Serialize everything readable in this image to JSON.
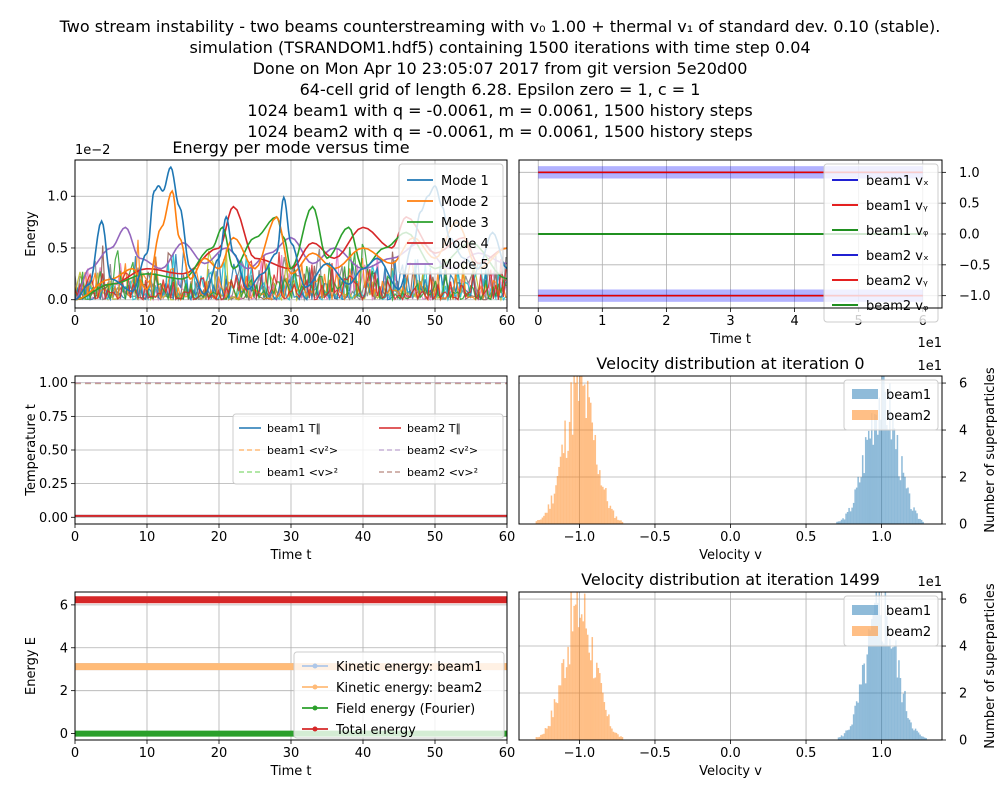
{
  "header": {
    "lines": [
      "Two stream instability - two beams counterstreaming with v₀ 1.00 + thermal v₁ of standard dev. 0.10 (stable).",
      "simulation (TSRANDOM1.hdf5) containing 1500 iterations with time step 0.04",
      "Done on Mon Apr 10 23:05:07 2017 from git version 5e20d00",
      "64-cell grid of length 6.28. Epsilon zero = 1, c = 1",
      "1024 beam1 with q = -0.0061, m = 0.0061, 1500 history steps",
      "1024 beam2 with q = -0.0061, m = 0.0061, 1500 history steps"
    ]
  },
  "chart_data": [
    {
      "id": "modes",
      "type": "line",
      "title": "Energy per mode versus time",
      "xlabel": "Time [dt: 4.00e-02]",
      "ylabel": "Energy",
      "offset_text": "1e−2",
      "xlim": [
        0,
        60
      ],
      "ylim": [
        -0.08,
        1.35
      ],
      "xticks": [
        "0",
        "10",
        "20",
        "30",
        "40",
        "50",
        "60"
      ],
      "yticks": [
        "0.0",
        "0.5",
        "1.0"
      ],
      "ytick_values": [
        0,
        0.5,
        1.0
      ],
      "grid": true,
      "legend_position": "top-right",
      "series": [
        {
          "name": "Mode 1",
          "color": "#1f77b4",
          "x": [
            0,
            2,
            3.7,
            5,
            8,
            10,
            11,
            11.6,
            12.2,
            13.3,
            14.5,
            16,
            18,
            20,
            21,
            22,
            24,
            26,
            28,
            29,
            30,
            32,
            35,
            38,
            40,
            42,
            45,
            47,
            48,
            49,
            50,
            51,
            52,
            54,
            56,
            58,
            60
          ],
          "y": [
            0,
            0.15,
            0.76,
            0.2,
            0.08,
            0.45,
            1.05,
            1.1,
            1.05,
            1.28,
            0.9,
            0.3,
            0.05,
            0.4,
            0.8,
            0.45,
            0.1,
            0.25,
            0.45,
            0.99,
            0.55,
            0.12,
            0.35,
            0.15,
            0.3,
            0.4,
            0.1,
            0.55,
            0.85,
            1.0,
            1.1,
            0.9,
            0.6,
            0.4,
            0.3,
            0.65,
            0.3
          ]
        },
        {
          "name": "Mode 2",
          "color": "#ff7f0e",
          "x": [
            0,
            5,
            8,
            10,
            12,
            13.5,
            14.5,
            16,
            18,
            20,
            22,
            25,
            28,
            30,
            33,
            36,
            40,
            44,
            47,
            50,
            53,
            56,
            60
          ],
          "y": [
            0,
            0.2,
            0.3,
            0.1,
            0.7,
            1.05,
            0.6,
            0.2,
            0.4,
            0.3,
            0.6,
            0.3,
            0.8,
            0.25,
            0.45,
            0.3,
            0.5,
            0.35,
            0.6,
            0.4,
            0.75,
            0.3,
            0.5
          ]
        },
        {
          "name": "Mode 3",
          "color": "#2ca02c",
          "x": [
            0,
            5,
            10,
            15,
            19,
            20.5,
            22,
            25,
            28,
            29,
            30,
            33,
            35,
            38,
            40,
            43,
            46,
            50,
            55,
            60
          ],
          "y": [
            0,
            0.15,
            0.25,
            0.2,
            0.5,
            0.7,
            0.3,
            0.6,
            0.8,
            0.6,
            0.3,
            0.9,
            0.4,
            0.7,
            0.3,
            0.5,
            0.65,
            0.3,
            0.55,
            0.2
          ]
        },
        {
          "name": "Mode 4",
          "color": "#d62728",
          "x": [
            0,
            5,
            10,
            15,
            20,
            22,
            25,
            30,
            33,
            36,
            40,
            44,
            46,
            50,
            54,
            56,
            60
          ],
          "y": [
            0,
            0.15,
            0.3,
            0.25,
            0.5,
            0.9,
            0.4,
            0.3,
            0.55,
            0.4,
            0.7,
            0.5,
            0.8,
            0.45,
            0.6,
            0.35,
            0.5
          ]
        },
        {
          "name": "Mode 5",
          "color": "#9467bd",
          "x": [
            0,
            2,
            5,
            7,
            9,
            12,
            15,
            18,
            21,
            24,
            27,
            30,
            33,
            36,
            40,
            44,
            48,
            52,
            56,
            60
          ],
          "y": [
            0,
            0.3,
            0.5,
            0.7,
            0.4,
            0.3,
            0.55,
            0.35,
            0.5,
            0.3,
            0.45,
            0.6,
            0.35,
            0.5,
            0.3,
            0.4,
            0.55,
            0.3,
            0.45,
            0.35
          ]
        }
      ],
      "extra_mode_colors": [
        "#8c564b",
        "#e377c2",
        "#7f7f7f",
        "#bcbd22",
        "#17becf",
        "#1f77b4",
        "#ff7f0e",
        "#2ca02c",
        "#d62728"
      ]
    },
    {
      "id": "velocities",
      "type": "line",
      "xlabel": "Time t",
      "offset_text": "1e1",
      "xlim": [
        -0.3,
        6.3
      ],
      "ylim": [
        -1.2,
        1.2
      ],
      "xticks": [
        "0",
        "1",
        "2",
        "3",
        "4",
        "5",
        "6"
      ],
      "xtick_values": [
        0,
        1,
        2,
        3,
        4,
        5,
        6
      ],
      "yticks": [
        "1.0",
        "0.5",
        "0.0",
        "−0.5",
        "−1.0"
      ],
      "ytick_values": [
        1.0,
        0.5,
        0.0,
        -0.5,
        -1.0
      ],
      "band_halfwidth": 0.1,
      "grid": true,
      "legend_position": "right",
      "series": [
        {
          "name": "beam1 vₓ",
          "color": "#0000cc",
          "value": 1.0
        },
        {
          "name": "beam1 vᵧ",
          "color": "#e00000",
          "value": 1.0
        },
        {
          "name": "beam1 vᵩ",
          "color": "#008000",
          "value": 0.0
        },
        {
          "name": "beam2 vₓ",
          "color": "#0000cc",
          "value": -1.0
        },
        {
          "name": "beam2 vᵧ",
          "color": "#e00000",
          "value": -1.0
        },
        {
          "name": "beam2 vᵩ",
          "color": "#008000",
          "value": 0.0
        }
      ]
    },
    {
      "id": "temperature",
      "type": "line",
      "xlabel": "Time t",
      "ylabel": "Temperature t",
      "xlim": [
        0,
        60
      ],
      "ylim": [
        -0.05,
        1.05
      ],
      "xticks": [
        "0",
        "10",
        "20",
        "30",
        "40",
        "50",
        "60"
      ],
      "yticks": [
        "0.00",
        "0.25",
        "0.50",
        "0.75",
        "1.00"
      ],
      "ytick_values": [
        0,
        0.25,
        0.5,
        0.75,
        1.0
      ],
      "grid": true,
      "legend_position": "center-right",
      "series": [
        {
          "name": "beam1 T∥",
          "color": "#1f77b4",
          "dash": "",
          "value": 0.01
        },
        {
          "name": "beam1 <v²>",
          "color": "#ffbb78",
          "dash": "6,4",
          "value": 1.0
        },
        {
          "name": "beam1 <v>²",
          "color": "#98df8a",
          "dash": "6,4",
          "value": 0.995
        },
        {
          "name": "beam2 T∥",
          "color": "#d62728",
          "dash": "",
          "value": 0.01
        },
        {
          "name": "beam2 <v²>",
          "color": "#c5b0d5",
          "dash": "6,4",
          "value": 1.0
        },
        {
          "name": "beam2 <v>²",
          "color": "#c49c94",
          "dash": "6,4",
          "value": 0.995
        }
      ]
    },
    {
      "id": "energy",
      "type": "line",
      "xlabel": "Time t",
      "ylabel": "Energy E",
      "xlim": [
        0,
        60
      ],
      "ylim": [
        -0.3,
        6.6
      ],
      "xticks": [
        "0",
        "10",
        "20",
        "30",
        "40",
        "50",
        "60"
      ],
      "yticks": [
        "0",
        "2",
        "4",
        "6"
      ],
      "ytick_values": [
        0,
        2,
        4,
        6
      ],
      "grid": true,
      "legend_position": "bottom-right",
      "series": [
        {
          "name": "Kinetic energy: beam1",
          "color": "#aec7e8",
          "value": 3.12
        },
        {
          "name": "Kinetic energy: beam2",
          "color": "#ffbb78",
          "value": 3.12
        },
        {
          "name": "Field energy (Fourier)",
          "color": "#2ca02c",
          "value": 0.0
        },
        {
          "name": "Total energy",
          "color": "#d62728",
          "value": 6.24
        }
      ]
    },
    {
      "id": "hist0",
      "type": "bar",
      "title": "Velocity distribution at iteration 0",
      "xlabel": "Velocity v",
      "ylabel": "Number of superparticles",
      "offset_text": "1e1",
      "xlim": [
        -1.4,
        1.4
      ],
      "ylim": [
        0,
        6.3
      ],
      "xticks": [
        "−1.0",
        "−0.5",
        "0.0",
        "0.5",
        "1.0"
      ],
      "xtick_values": [
        -1.0,
        -0.5,
        0.0,
        0.5,
        1.0
      ],
      "yticks": [
        "0",
        "2",
        "4",
        "6"
      ],
      "ytick_values": [
        0,
        2,
        4,
        6
      ],
      "grid": true,
      "legend_position": "top-right",
      "series": [
        {
          "name": "beam1",
          "color": "#1f77b4",
          "mean": 1.0,
          "sigma": 0.1,
          "peak": 5.9,
          "seed": 3
        },
        {
          "name": "beam2",
          "color": "#ff7f0e",
          "mean": -1.0,
          "sigma": 0.1,
          "peak": 6.0,
          "seed": 11
        }
      ]
    },
    {
      "id": "hist1499",
      "type": "bar",
      "title": "Velocity distribution at iteration 1499",
      "xlabel": "Velocity v",
      "ylabel": "Number of superparticles",
      "offset_text": "1e1",
      "xlim": [
        -1.4,
        1.4
      ],
      "ylim": [
        0,
        6.3
      ],
      "xticks": [
        "−1.0",
        "−0.5",
        "0.0",
        "0.5",
        "1.0"
      ],
      "xtick_values": [
        -1.0,
        -0.5,
        0.0,
        0.5,
        1.0
      ],
      "yticks": [
        "0",
        "2",
        "4",
        "6"
      ],
      "ytick_values": [
        0,
        2,
        4,
        6
      ],
      "grid": true,
      "legend_position": "top-right",
      "series": [
        {
          "name": "beam1",
          "color": "#1f77b4",
          "mean": 1.0,
          "sigma": 0.1,
          "peak": 5.7,
          "seed": 5
        },
        {
          "name": "beam2",
          "color": "#ff7f0e",
          "mean": -1.0,
          "sigma": 0.1,
          "peak": 5.9,
          "seed": 17
        }
      ]
    }
  ]
}
